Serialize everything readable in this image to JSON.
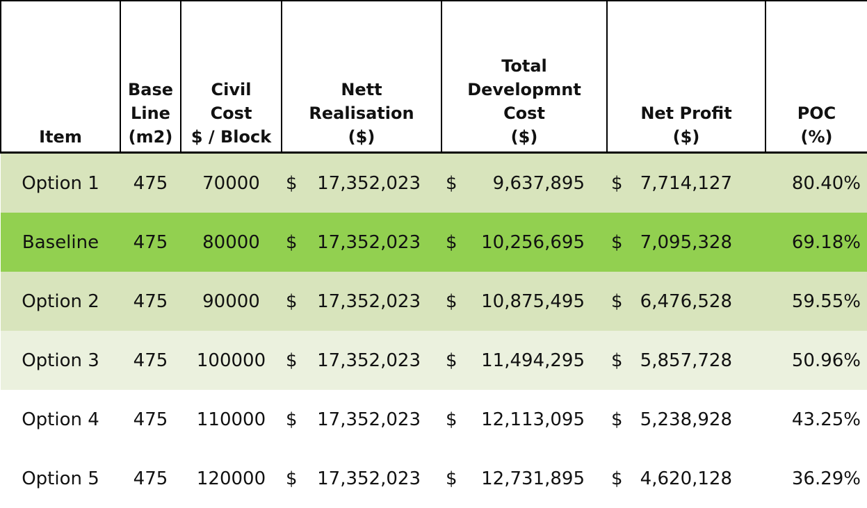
{
  "headers": {
    "item": [
      "Item"
    ],
    "base_line": [
      "Base",
      "Line",
      "(m2)"
    ],
    "civil_cost": [
      "Civil",
      "Cost",
      "$ / Block"
    ],
    "nett_realisation": [
      "Nett",
      "Realisation",
      "($)"
    ],
    "total_development_cost": [
      "Total",
      "Developmnt",
      "Cost",
      "($)"
    ],
    "net_profit": [
      "Net Profit",
      "($)"
    ],
    "poc": [
      "POC",
      "(%)"
    ]
  },
  "currency_symbol": "$",
  "rows": [
    {
      "item": "Option 1",
      "base_line": "475",
      "civil_cost": "70000",
      "nett_realisation": "17,352,023",
      "total_development_cost": "9,637,895",
      "net_profit": "7,714,127",
      "poc": "80.40%",
      "fill": "#d8e4bc"
    },
    {
      "item": "Baseline",
      "base_line": "475",
      "civil_cost": "80000",
      "nett_realisation": "17,352,023",
      "total_development_cost": "10,256,695",
      "net_profit": "7,095,328",
      "poc": "69.18%",
      "fill": "#92d050"
    },
    {
      "item": "Option 2",
      "base_line": "475",
      "civil_cost": "90000",
      "nett_realisation": "17,352,023",
      "total_development_cost": "10,875,495",
      "net_profit": "6,476,528",
      "poc": "59.55%",
      "fill": "#d8e4bc"
    },
    {
      "item": "Option 3",
      "base_line": "475",
      "civil_cost": "100000",
      "nett_realisation": "17,352,023",
      "total_development_cost": "11,494,295",
      "net_profit": "5,857,728",
      "poc": "50.96%",
      "fill": "#ebf1de"
    },
    {
      "item": "Option 4",
      "base_line": "475",
      "civil_cost": "110000",
      "nett_realisation": "17,352,023",
      "total_development_cost": "12,113,095",
      "net_profit": "5,238,928",
      "poc": "43.25%",
      "fill": "#ffffff"
    },
    {
      "item": "Option 5",
      "base_line": "475",
      "civil_cost": "120000",
      "nett_realisation": "17,352,023",
      "total_development_cost": "12,731,895",
      "net_profit": "4,620,128",
      "poc": "36.29%",
      "fill": "#ffffff"
    }
  ]
}
